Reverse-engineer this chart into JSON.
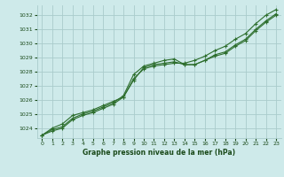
{
  "title": "Graphe pression niveau de la mer (hPa)",
  "bg_color": "#ceeaea",
  "grid_color": "#aacccc",
  "line_color": "#2d6e2d",
  "xlabel_color": "#1a4a1a",
  "xmin": -0.5,
  "xmax": 23.5,
  "ymin": 1023.3,
  "ymax": 1032.7,
  "yticks": [
    1024,
    1025,
    1026,
    1027,
    1028,
    1029,
    1030,
    1031,
    1032
  ],
  "xticks": [
    0,
    1,
    2,
    3,
    4,
    5,
    6,
    7,
    8,
    9,
    10,
    11,
    12,
    13,
    14,
    15,
    16,
    17,
    18,
    19,
    20,
    21,
    22,
    23
  ],
  "series1": [
    1023.5,
    1024.0,
    1024.3,
    1024.9,
    1025.1,
    1025.3,
    1025.6,
    1025.9,
    1026.2,
    1027.4,
    1028.3,
    1028.5,
    1028.6,
    1028.7,
    1028.5,
    1028.5,
    1028.8,
    1029.2,
    1029.4,
    1029.9,
    1030.3,
    1031.0,
    1031.6,
    1032.1
  ],
  "series2": [
    1023.5,
    1023.9,
    1024.1,
    1024.7,
    1025.0,
    1025.2,
    1025.5,
    1025.8,
    1026.3,
    1027.8,
    1028.4,
    1028.6,
    1028.8,
    1028.9,
    1028.5,
    1028.5,
    1028.8,
    1029.1,
    1029.3,
    1029.8,
    1030.2,
    1030.9,
    1031.5,
    1032.0
  ],
  "series3": [
    1023.5,
    1023.8,
    1024.0,
    1024.6,
    1024.9,
    1025.1,
    1025.4,
    1025.7,
    1026.2,
    1027.5,
    1028.2,
    1028.4,
    1028.5,
    1028.6,
    1028.6,
    1028.8,
    1029.1,
    1029.5,
    1029.8,
    1030.3,
    1030.7,
    1031.4,
    1032.0,
    1032.4
  ]
}
